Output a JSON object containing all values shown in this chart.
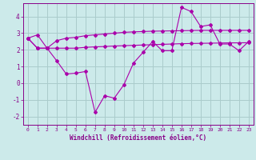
{
  "xlabel": "Windchill (Refroidissement éolien,°C)",
  "background_color": "#cceaea",
  "grid_color": "#aacccc",
  "line_color": "#aa00aa",
  "xlim": [
    -0.5,
    23.5
  ],
  "ylim": [
    -2.5,
    4.8
  ],
  "yticks": [
    -2,
    -1,
    0,
    1,
    2,
    3,
    4
  ],
  "xticks": [
    0,
    1,
    2,
    3,
    4,
    5,
    6,
    7,
    8,
    9,
    10,
    11,
    12,
    13,
    14,
    15,
    16,
    17,
    18,
    19,
    20,
    21,
    22,
    23
  ],
  "line1_x": [
    0,
    1,
    2,
    3,
    4,
    5,
    6,
    7,
    8,
    9,
    10,
    11,
    12,
    13,
    14,
    15,
    16,
    17,
    18,
    19,
    20,
    21,
    22,
    23
  ],
  "line1_y": [
    2.7,
    2.9,
    2.1,
    1.35,
    0.55,
    0.6,
    0.7,
    -1.75,
    -0.75,
    -0.9,
    -0.1,
    1.2,
    1.85,
    2.5,
    1.95,
    1.95,
    4.55,
    4.3,
    3.4,
    3.5,
    2.35,
    2.35,
    1.95,
    2.5
  ],
  "line2_x": [
    0,
    1,
    2,
    3,
    4,
    5,
    6,
    7,
    8,
    9,
    10,
    11,
    12,
    13,
    14,
    15,
    16,
    17,
    18,
    19,
    20,
    21,
    22,
    23
  ],
  "line2_y": [
    2.7,
    2.1,
    2.1,
    2.1,
    2.1,
    2.1,
    2.15,
    2.18,
    2.2,
    2.23,
    2.25,
    2.27,
    2.29,
    2.31,
    2.33,
    2.35,
    2.37,
    2.38,
    2.39,
    2.4,
    2.41,
    2.42,
    2.42,
    2.43
  ],
  "line3_x": [
    0,
    1,
    2,
    3,
    4,
    5,
    6,
    7,
    8,
    9,
    10,
    11,
    12,
    13,
    14,
    15,
    16,
    17,
    18,
    19,
    20,
    21,
    22,
    23
  ],
  "line3_y": [
    2.7,
    2.1,
    2.1,
    2.55,
    2.7,
    2.75,
    2.85,
    2.9,
    2.95,
    3.0,
    3.05,
    3.08,
    3.1,
    3.12,
    3.13,
    3.14,
    3.15,
    3.16,
    3.17,
    3.17,
    3.17,
    3.17,
    3.17,
    3.17
  ]
}
